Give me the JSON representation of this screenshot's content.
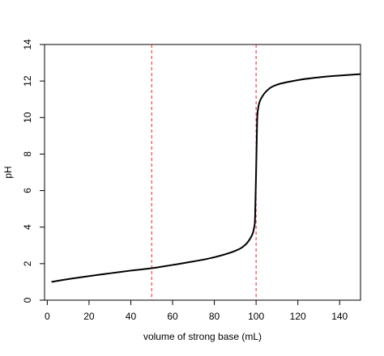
{
  "chart_data": {
    "type": "line",
    "title": "",
    "xlabel": "volume of strong base (mL)",
    "ylabel": "pH",
    "xlim": [
      0,
      150
    ],
    "ylim": [
      0,
      14
    ],
    "x_ticks": [
      0,
      20,
      40,
      60,
      80,
      100,
      120,
      140
    ],
    "y_ticks": [
      0,
      2,
      4,
      6,
      8,
      10,
      12,
      14
    ],
    "grid": false,
    "legend": "none",
    "series": [
      {
        "color": "#000000",
        "x": [
          2,
          10,
          20,
          30,
          40,
          50,
          60,
          70,
          80,
          90,
          95,
          98,
          99,
          99.5,
          100,
          100.5,
          101,
          102,
          105,
          110,
          120,
          130,
          140,
          150
        ],
        "y": [
          1.0,
          1.15,
          1.32,
          1.47,
          1.62,
          1.75,
          1.93,
          2.12,
          2.35,
          2.7,
          3.05,
          3.55,
          3.95,
          4.5,
          7.0,
          9.8,
          10.5,
          10.95,
          11.45,
          11.8,
          12.05,
          12.2,
          12.3,
          12.38
        ]
      }
    ],
    "reference_lines": [
      {
        "x": 50,
        "color": "#e8202a",
        "style": "dashed"
      },
      {
        "x": 100,
        "color": "#e8202a",
        "style": "dashed"
      }
    ]
  }
}
